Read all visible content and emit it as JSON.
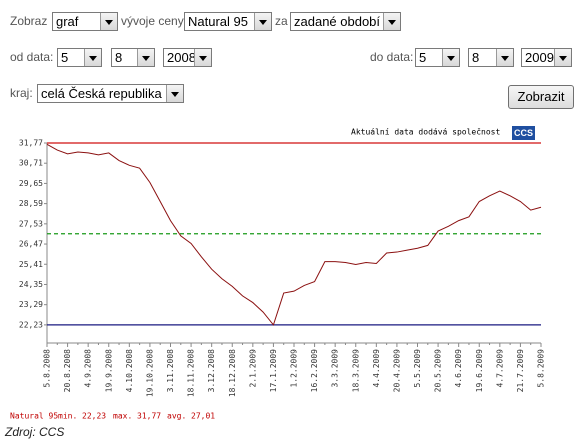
{
  "form": {
    "show_label": "Zobraz",
    "show_value": "graf",
    "trend_label": "vývoje ceny",
    "fuel_value": "Natural 95",
    "period_label": "za",
    "period_value": "zadané období",
    "from_label": "od data:",
    "from_day": "5",
    "from_month": "8",
    "from_year": "2008",
    "to_label": "do data:",
    "to_day": "5",
    "to_month": "8",
    "to_year": "2009",
    "region_label": "kraj:",
    "region_value": "celá Česká republika",
    "button": "Zobrazit"
  },
  "chart_data": {
    "type": "line",
    "attribution": "Aktuální data dodává společnost",
    "logo": "CCS",
    "categories": [
      "5.8.2008",
      null,
      "20.8.2008",
      null,
      "4.9.2008",
      null,
      "19.9.2008",
      null,
      "4.10.2008",
      null,
      "19.10.2008",
      null,
      "3.11.2008",
      null,
      "18.11.2008",
      null,
      "3.12.2008",
      null,
      "18.12.2008",
      null,
      "2.1.2009",
      null,
      "17.1.2009",
      null,
      "1.2.2009",
      null,
      "16.2.2009",
      null,
      "3.3.2009",
      null,
      "18.3.2009",
      null,
      "4.4.2009",
      null,
      "20.4.2009",
      null,
      "5.5.2009",
      null,
      "20.5.2009",
      null,
      "4.6.2009",
      null,
      "19.6.2009",
      null,
      "4.7.2009",
      null,
      "21.7.2009",
      null,
      "5.8.2009"
    ],
    "series": [
      {
        "name": "Natural 95",
        "color": "#8b1010",
        "values": [
          31.7,
          31.4,
          31.2,
          31.3,
          31.25,
          31.15,
          31.25,
          30.85,
          30.6,
          30.45,
          29.7,
          28.7,
          27.7,
          26.9,
          26.5,
          25.8,
          25.15,
          24.65,
          24.25,
          23.75,
          23.4,
          22.9,
          22.23,
          23.9,
          24.0,
          24.3,
          24.5,
          25.55,
          25.55,
          25.5,
          25.4,
          25.5,
          25.45,
          26.0,
          26.05,
          26.15,
          26.25,
          26.4,
          27.15,
          27.4,
          27.7,
          27.9,
          28.7,
          29.0,
          29.25,
          29.0,
          28.7,
          28.25,
          28.4
        ]
      }
    ],
    "ylim": [
      21.28,
      31.77
    ],
    "yticks": [
      {
        "value": 22.23,
        "label": "22,23"
      },
      {
        "value": 23.29,
        "label": "23,29"
      },
      {
        "value": 24.35,
        "label": "24,35"
      },
      {
        "value": 25.41,
        "label": "25,41"
      },
      {
        "value": 26.47,
        "label": "26,47"
      },
      {
        "value": 27.53,
        "label": "27,53"
      },
      {
        "value": 28.59,
        "label": "28,59"
      },
      {
        "value": 29.65,
        "label": "29,65"
      },
      {
        "value": 30.71,
        "label": "30,71"
      },
      {
        "value": 31.77,
        "label": "31,77"
      }
    ],
    "stats": {
      "min_label": "min.",
      "min": {
        "value": 22.23,
        "label": "22,23"
      },
      "min_color": "#1a1a80",
      "max_label": "max.",
      "max": {
        "value": 31.77,
        "label": "31,77"
      },
      "max_color": "#d01010",
      "avg_label": "avg.",
      "avg": {
        "value": 27.01,
        "label": "27,01"
      },
      "avg_color": "#1a9a1a"
    },
    "source": "Zdroj: CCS"
  }
}
